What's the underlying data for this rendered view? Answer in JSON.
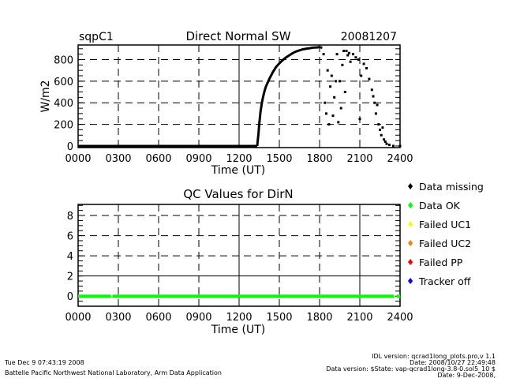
{
  "chart_data": [
    {
      "type": "scatter",
      "title": "Direct Normal SW",
      "site": "sqpC1",
      "date": "20081207",
      "xlabel": "Time (UT)",
      "ylabel": "W/m2",
      "xlim": [
        0,
        24
      ],
      "ylim": [
        -15,
        935
      ],
      "xticks": [
        "0000",
        "0300",
        "0600",
        "0900",
        "1200",
        "1500",
        "1800",
        "2100",
        "2400"
      ],
      "yticks": [
        "0",
        "200",
        "400",
        "600",
        "800"
      ],
      "yticks_values": [
        0,
        200,
        400,
        600,
        800
      ],
      "grid": true,
      "series": [
        {
          "name": "DirN",
          "color": "#000000",
          "x": [
            0,
            1,
            2,
            3,
            4,
            5,
            6,
            7,
            8,
            9,
            10,
            11,
            12,
            13,
            13.35,
            13.45,
            13.5,
            13.6,
            13.7,
            13.8,
            13.9,
            14,
            14.25,
            14.5,
            14.75,
            15,
            15.25,
            15.5,
            15.75,
            16,
            16.25,
            16.5,
            16.75,
            17,
            17.25,
            17.5,
            17.75,
            18,
            18.2,
            18.3,
            18.4,
            18.5,
            18.6,
            18.7,
            18.8,
            18.9,
            19,
            19.1,
            19.2,
            19.3,
            19.4,
            19.5,
            19.6,
            19.7,
            19.8,
            19.9,
            20,
            20.1,
            20.2,
            20.3,
            20.5,
            20.7,
            20.9,
            21,
            21.1,
            21.3,
            21.5,
            21.7,
            21.9,
            22,
            22.1,
            22.2,
            22.3,
            22.4,
            22.5,
            22.6,
            22.7,
            22.8,
            22.9,
            23,
            23.2,
            23.5,
            24
          ],
          "y": [
            0,
            0,
            0,
            0,
            0,
            0,
            0,
            0,
            0,
            0,
            0,
            0,
            0,
            0,
            0,
            120,
            200,
            320,
            400,
            460,
            510,
            550,
            620,
            680,
            730,
            765,
            795,
            820,
            840,
            860,
            875,
            885,
            895,
            900,
            905,
            910,
            912,
            915,
            910,
            850,
            400,
            300,
            700,
            200,
            550,
            650,
            280,
            450,
            600,
            850,
            220,
            600,
            350,
            750,
            880,
            500,
            880,
            840,
            860,
            780,
            850,
            820,
            800,
            250,
            650,
            760,
            720,
            620,
            520,
            460,
            400,
            300,
            380,
            200,
            150,
            100,
            170,
            60,
            40,
            20,
            10,
            0,
            0
          ]
        }
      ]
    },
    {
      "type": "scatter",
      "title": "QC Values for DirN",
      "xlabel": "Time (UT)",
      "xlim": [
        0,
        24
      ],
      "ylim": [
        -1,
        9.1
      ],
      "xticks": [
        "0000",
        "0300",
        "0600",
        "0900",
        "1200",
        "1500",
        "1800",
        "2100",
        "2400"
      ],
      "yticks": [
        "0",
        "2",
        "4",
        "6",
        "8"
      ],
      "yticks_values": [
        0,
        2,
        4,
        6,
        8
      ],
      "grid": true,
      "segments": [
        {
          "name": "Data OK",
          "value": 0,
          "from": 0,
          "to": 2.45
        },
        {
          "name": "Data OK",
          "value": 0,
          "from": 2.55,
          "to": 23.55
        },
        {
          "name": "Data OK",
          "value": 0,
          "from": 23.75,
          "to": 24
        }
      ],
      "legend_position": "right",
      "legend": [
        {
          "label": "Data missing",
          "color": "#000000"
        },
        {
          "label": "Data OK",
          "color": "#00ff00"
        },
        {
          "label": "Failed UC1",
          "color": "#ffff00"
        },
        {
          "label": "Failed UC2",
          "color": "#ff8000"
        },
        {
          "label": "Failed PP",
          "color": "#ff0000"
        },
        {
          "label": "Tracker off",
          "color": "#0000ff"
        }
      ]
    }
  ],
  "footer": {
    "timestamp": "Tue Dec  9 07:43:19 2008",
    "organization": "Battelle Pacific Northwest National Laboratory, Arm Data Application",
    "idl_version": "IDL version: qcrad1long_plots.pro,v 1.1",
    "idl_date": "Date: 2008/10/27 22:49:48",
    "data_version": "Data version: $State: vap-qcrad1long-3.8-0.sol5_10 $",
    "data_date": "Date: 9-Dec-2008,"
  }
}
